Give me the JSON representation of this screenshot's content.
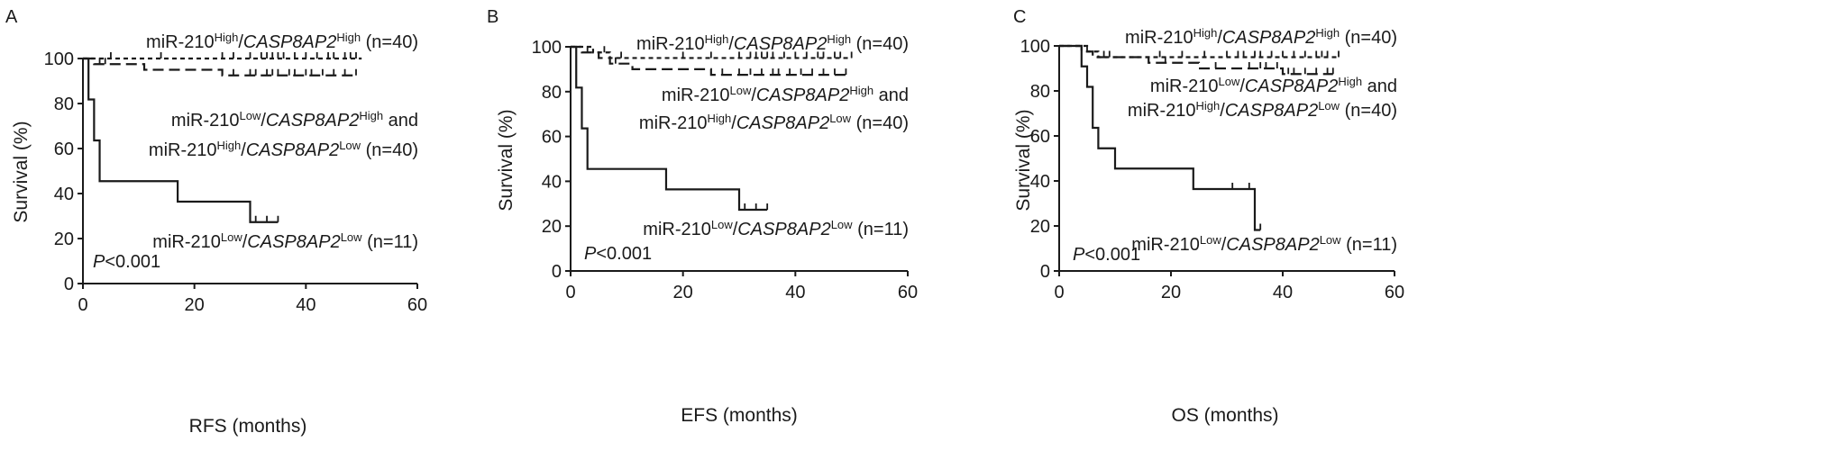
{
  "chart_data": [
    {
      "type": "line",
      "panel": "A",
      "xlabel": "RFS (months)",
      "ylabel": "Survival (%)",
      "xlim": [
        0,
        60
      ],
      "ylim": [
        0,
        100
      ],
      "xticks": [
        0,
        20,
        40,
        60
      ],
      "yticks": [
        0,
        20,
        40,
        60,
        80,
        100
      ],
      "pvalue": {
        "label": "P",
        "rest": "<0.001"
      },
      "series": [
        {
          "style": "dotted",
          "label_parts": [
            {
              "t": "miR-210"
            },
            {
              "t": "High",
              "sup": true
            },
            {
              "t": "/"
            },
            {
              "t": "CASP8AP2",
              "italic": true
            },
            {
              "t": "High",
              "sup": true
            },
            {
              "t": " (n=40)"
            }
          ],
          "steps": [
            [
              0,
              100
            ],
            [
              50,
              100
            ]
          ],
          "censors": [
            5,
            14,
            25,
            27,
            30,
            32,
            33,
            34,
            35,
            36,
            38,
            40,
            42,
            44,
            45,
            47,
            48,
            49
          ]
        },
        {
          "style": "dashed",
          "label_parts": [
            {
              "t": "miR-210"
            },
            {
              "t": "Low",
              "sup": true
            },
            {
              "t": "/"
            },
            {
              "t": "CASP8AP2",
              "italic": true
            },
            {
              "t": "High",
              "sup": true
            },
            {
              "t": " and"
            }
          ],
          "label_parts_2": [
            {
              "t": "miR-210"
            },
            {
              "t": "High",
              "sup": true
            },
            {
              "t": "/"
            },
            {
              "t": "CASP8AP2",
              "italic": true
            },
            {
              "t": "Low",
              "sup": true
            },
            {
              "t": " (n=40)"
            }
          ],
          "steps": [
            [
              0,
              100
            ],
            [
              2,
              97.5
            ],
            [
              11,
              95
            ],
            [
              25,
              92.5
            ],
            [
              49,
              92.5
            ]
          ],
          "censors": [
            3,
            4,
            27,
            30,
            31,
            33,
            34,
            35,
            37,
            38,
            40,
            41,
            43,
            45,
            47,
            49
          ]
        },
        {
          "style": "solid",
          "label_parts": [
            {
              "t": "miR-210"
            },
            {
              "t": "Low",
              "sup": true
            },
            {
              "t": "/"
            },
            {
              "t": "CASP8AP2",
              "italic": true
            },
            {
              "t": "Low",
              "sup": true
            },
            {
              "t": " (n=11)"
            }
          ],
          "steps": [
            [
              0,
              100
            ],
            [
              1,
              81.8
            ],
            [
              2,
              63.6
            ],
            [
              3,
              45.5
            ],
            [
              17,
              36.4
            ],
            [
              30,
              27.3
            ],
            [
              35,
              27.3
            ]
          ],
          "censors": [
            31,
            33,
            35
          ]
        }
      ]
    },
    {
      "type": "line",
      "panel": "B",
      "xlabel": "EFS (months)",
      "ylabel": "Survival (%)",
      "xlim": [
        0,
        60
      ],
      "ylim": [
        0,
        100
      ],
      "xticks": [
        0,
        20,
        40,
        60
      ],
      "yticks": [
        0,
        20,
        40,
        60,
        80,
        100
      ],
      "pvalue": {
        "label": "P",
        "rest": "<0.001"
      },
      "series": [
        {
          "style": "dotted",
          "label_parts": [
            {
              "t": "miR-210"
            },
            {
              "t": "High",
              "sup": true
            },
            {
              "t": "/"
            },
            {
              "t": "CASP8AP2",
              "italic": true
            },
            {
              "t": "High",
              "sup": true
            },
            {
              "t": " (n=40)"
            }
          ],
          "steps": [
            [
              0,
              100
            ],
            [
              4,
              97.5
            ],
            [
              7,
              95
            ],
            [
              50,
              95
            ]
          ],
          "censors": [
            6,
            9,
            20,
            25,
            30,
            32,
            33,
            34,
            35,
            36,
            38,
            40,
            42,
            44,
            45,
            47,
            48,
            50
          ]
        },
        {
          "style": "dashed",
          "label_parts": [
            {
              "t": "miR-210"
            },
            {
              "t": "Low",
              "sup": true
            },
            {
              "t": "/"
            },
            {
              "t": "CASP8AP2",
              "italic": true
            },
            {
              "t": "High",
              "sup": true
            },
            {
              "t": " and"
            }
          ],
          "label_parts_2": [
            {
              "t": "miR-210"
            },
            {
              "t": "High",
              "sup": true
            },
            {
              "t": "/"
            },
            {
              "t": "CASP8AP2",
              "italic": true
            },
            {
              "t": "Low",
              "sup": true
            },
            {
              "t": " (n=40)"
            }
          ],
          "steps": [
            [
              0,
              100
            ],
            [
              2,
              97.5
            ],
            [
              5,
              95
            ],
            [
              7,
              92.5
            ],
            [
              11,
              90
            ],
            [
              25,
              87.5
            ],
            [
              49,
              87.5
            ]
          ],
          "censors": [
            3,
            8,
            27,
            30,
            32,
            34,
            36,
            37,
            39,
            41,
            43,
            45,
            47,
            49
          ]
        },
        {
          "style": "solid",
          "label_parts": [
            {
              "t": "miR-210"
            },
            {
              "t": "Low",
              "sup": true
            },
            {
              "t": "/"
            },
            {
              "t": "CASP8AP2",
              "italic": true
            },
            {
              "t": "Low",
              "sup": true
            },
            {
              "t": " (n=11)"
            }
          ],
          "steps": [
            [
              0,
              100
            ],
            [
              1,
              81.8
            ],
            [
              2,
              63.6
            ],
            [
              3,
              45.5
            ],
            [
              17,
              36.4
            ],
            [
              30,
              27.3
            ],
            [
              35,
              27.3
            ]
          ],
          "censors": [
            31,
            33,
            35
          ]
        }
      ]
    },
    {
      "type": "line",
      "panel": "C",
      "xlabel": "OS (months)",
      "ylabel": "Survival (%)",
      "xlim": [
        0,
        60
      ],
      "ylim": [
        0,
        100
      ],
      "xticks": [
        0,
        20,
        40,
        60
      ],
      "yticks": [
        0,
        20,
        40,
        60,
        80,
        100
      ],
      "pvalue": {
        "label": "P",
        "rest": "<0.001"
      },
      "series": [
        {
          "style": "dotted",
          "label_parts": [
            {
              "t": "miR-210"
            },
            {
              "t": "High",
              "sup": true
            },
            {
              "t": "/"
            },
            {
              "t": "CASP8AP2",
              "italic": true
            },
            {
              "t": "High",
              "sup": true
            },
            {
              "t": " (n=40)"
            }
          ],
          "steps": [
            [
              0,
              100
            ],
            [
              5,
              97.5
            ],
            [
              7,
              95
            ],
            [
              50,
              95
            ]
          ],
          "censors": [
            5,
            9,
            18,
            22,
            26,
            30,
            32,
            33,
            35,
            36,
            38,
            40,
            42,
            44,
            46,
            47,
            48,
            50
          ]
        },
        {
          "style": "dashed",
          "label_parts": [
            {
              "t": "miR-210"
            },
            {
              "t": "Low",
              "sup": true
            },
            {
              "t": "/"
            },
            {
              "t": "CASP8AP2",
              "italic": true
            },
            {
              "t": "High",
              "sup": true
            },
            {
              "t": " and"
            }
          ],
          "label_parts_2": [
            {
              "t": "miR-210"
            },
            {
              "t": "High",
              "sup": true
            },
            {
              "t": "/"
            },
            {
              "t": "CASP8AP2",
              "italic": true
            },
            {
              "t": "Low",
              "sup": true
            },
            {
              "t": " (n=40)"
            }
          ],
          "steps": [
            [
              0,
              100
            ],
            [
              4,
              97.5
            ],
            [
              6,
              95
            ],
            [
              16,
              92.5
            ],
            [
              25,
              90
            ],
            [
              40,
              87.5
            ],
            [
              49,
              87.5
            ]
          ],
          "censors": [
            8,
            19,
            28,
            34,
            36,
            37,
            39,
            41,
            42,
            44,
            46,
            48,
            49
          ]
        },
        {
          "style": "solid",
          "label_parts": [
            {
              "t": "miR-210"
            },
            {
              "t": "Low",
              "sup": true
            },
            {
              "t": "/"
            },
            {
              "t": "CASP8AP2",
              "italic": true
            },
            {
              "t": "Low",
              "sup": true
            },
            {
              "t": " (n=11)"
            }
          ],
          "steps": [
            [
              0,
              100
            ],
            [
              4,
              90.9
            ],
            [
              5,
              81.8
            ],
            [
              6,
              63.6
            ],
            [
              7,
              54.5
            ],
            [
              10,
              45.5
            ],
            [
              24,
              36.4
            ],
            [
              35,
              18.2
            ],
            [
              36,
              18.2
            ]
          ],
          "censors": [
            31,
            34,
            36
          ]
        }
      ]
    }
  ]
}
